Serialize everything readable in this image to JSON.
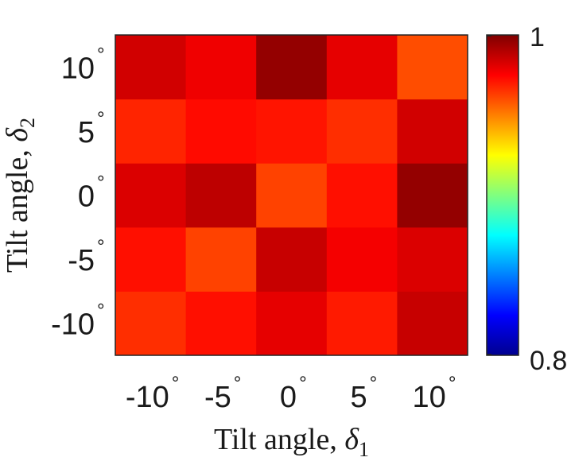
{
  "chart_data": {
    "type": "heatmap",
    "title": "",
    "xlabel": {
      "text": "Tilt angle, ",
      "symbol": "δ",
      "subscript": "1"
    },
    "ylabel": {
      "text": "Tilt angle, ",
      "symbol": "δ",
      "subscript": "2"
    },
    "x_categories": [
      "-10",
      "-5",
      "0",
      "5",
      "10"
    ],
    "y_categories": [
      "-10",
      "-5",
      "0",
      "5",
      "10"
    ],
    "degree_symbol": "°",
    "values": [
      [
        0.966,
        0.972,
        0.98,
        0.97,
        0.986
      ],
      [
        0.972,
        0.962,
        0.986,
        0.977,
        0.982
      ],
      [
        0.982,
        0.988,
        0.962,
        0.972,
        0.996
      ],
      [
        0.968,
        0.973,
        0.971,
        0.966,
        0.984
      ],
      [
        0.984,
        0.978,
        0.996,
        0.98,
        0.96
      ]
    ],
    "values_note_rows": "rows ordered from y=-10 (bottom) to y=10 (top); columns x=-10 to x=10",
    "colorbar": {
      "min": 0.8,
      "max": 1,
      "min_label": "0.8",
      "max_label": "1",
      "colormap": "jet"
    },
    "grid": false
  }
}
